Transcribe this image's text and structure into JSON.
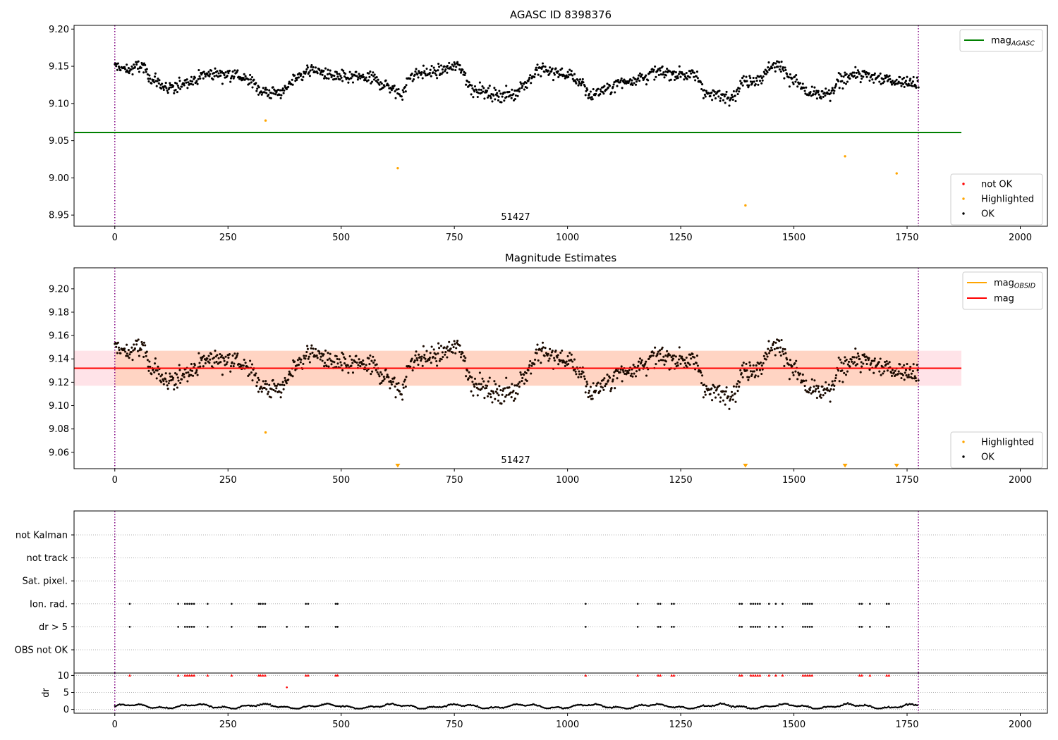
{
  "figure": {
    "panels": [
      {
        "id": "agasc",
        "title": "AGASC ID 8398376",
        "xlim": [
          -90,
          2060
        ],
        "ylim": [
          8.935,
          9.205
        ],
        "yticks": [
          "9.20",
          "9.15",
          "9.10",
          "9.05",
          "9.00",
          "8.95"
        ],
        "xticks": [
          "0",
          "250",
          "500",
          "750",
          "1000",
          "1250",
          "1500",
          "1750",
          "2000"
        ],
        "annotation": "51427",
        "legend_top": [
          {
            "label": "mag",
            "sub": "AGASC",
            "color": "#008000"
          }
        ],
        "legend_bottom": [
          {
            "label": "not OK",
            "color": "#ff0000"
          },
          {
            "label": "Highlighted",
            "color": "#ffa500"
          },
          {
            "label": "OK",
            "color": "#000000"
          }
        ]
      },
      {
        "id": "estimates",
        "title": "Magnitude Estimates",
        "xlim": [
          -90,
          2060
        ],
        "ylim": [
          9.046,
          9.218
        ],
        "yticks": [
          "9.20",
          "9.18",
          "9.16",
          "9.14",
          "9.12",
          "9.10",
          "9.08",
          "9.06"
        ],
        "xticks": [
          "0",
          "250",
          "500",
          "750",
          "1000",
          "1250",
          "1500",
          "1750",
          "2000"
        ],
        "annotation": "51427",
        "legend_top": [
          {
            "label": "mag",
            "sub": "OBSID",
            "color": "#ffa500"
          },
          {
            "label": "mag",
            "sub": "",
            "color": "#ff0000"
          }
        ],
        "legend_bottom": [
          {
            "label": "Highlighted",
            "color": "#ffa500"
          },
          {
            "label": "OK",
            "color": "#000000"
          }
        ]
      },
      {
        "id": "flags",
        "categories": [
          "not Kalman",
          "not track",
          "Sat. pixel.",
          "Ion. rad.",
          "dr > 5",
          "OBS not OK"
        ]
      },
      {
        "id": "dr",
        "ylabel": "dr",
        "yticks": [
          "10",
          "5",
          "0"
        ],
        "ylim": [
          -0.5,
          10.5
        ],
        "xticks": [
          "0",
          "250",
          "500",
          "750",
          "1000",
          "1250",
          "1500",
          "1750",
          "2000"
        ]
      }
    ]
  },
  "chart_data": [
    {
      "type": "scatter",
      "title": "AGASC ID 8398376",
      "xlim": [
        -90,
        2060
      ],
      "ylim": [
        8.935,
        9.205
      ],
      "series": [
        {
          "name": "mag_AGASC",
          "type": "hline",
          "y": 9.061,
          "x_range": [
            -90,
            1870
          ],
          "color": "#008000"
        },
        {
          "name": "Highlighted",
          "color": "#ffa500",
          "points": [
            [
              333,
              9.077
            ],
            [
              625,
              9.013
            ],
            [
              1393,
              8.963
            ],
            [
              1613,
              9.029
            ],
            [
              1727,
              9.006
            ]
          ]
        },
        {
          "name": "OK",
          "color": "#000000",
          "x_range": [
            0,
            1775
          ],
          "y_range": [
            9.09,
            9.17
          ]
        }
      ],
      "vlines": [
        0,
        1775
      ],
      "annotation": {
        "text": "51427",
        "x": 888
      }
    },
    {
      "type": "scatter",
      "title": "Magnitude Estimates",
      "xlim": [
        -90,
        2060
      ],
      "ylim": [
        9.046,
        9.218
      ],
      "series": [
        {
          "name": "mag_OBSID",
          "type": "band",
          "center": 9.132,
          "low": 9.117,
          "high": 9.147,
          "x_range": [
            0,
            1775
          ],
          "color": "#ffa500"
        },
        {
          "name": "mag",
          "type": "hline",
          "y": 9.132,
          "x_range": [
            -90,
            1870
          ],
          "color": "#ff0000"
        },
        {
          "name": "Highlighted",
          "color": "#ffa500",
          "points": [
            [
              333,
              9.077
            ]
          ],
          "out_of_range_below": [
            625,
            1393,
            1613,
            1727
          ]
        },
        {
          "name": "OK",
          "color": "#000000",
          "x_range": [
            0,
            1775
          ],
          "y_range": [
            9.09,
            9.17
          ]
        }
      ],
      "vlines": [
        0,
        1775
      ],
      "annotation": {
        "text": "51427",
        "x": 888
      }
    },
    {
      "type": "scatter",
      "categories": [
        "not Kalman",
        "not track",
        "Sat. pixel.",
        "Ion. rad.",
        "dr > 5",
        "OBS not OK"
      ],
      "flags": {
        "Ion. rad.": [
          33,
          140,
          155,
          160,
          165,
          170,
          175,
          205,
          258,
          318,
          322,
          327,
          332,
          422,
          427,
          488,
          492,
          1040,
          1155,
          1200,
          1205,
          1230,
          1235,
          1380,
          1385,
          1405,
          1410,
          1415,
          1420,
          1425,
          1445,
          1460,
          1475,
          1520,
          1525,
          1530,
          1535,
          1540,
          1645,
          1650,
          1668,
          1705,
          1710
        ],
        "dr > 5": [
          33,
          140,
          155,
          160,
          165,
          170,
          175,
          205,
          258,
          318,
          322,
          327,
          332,
          380,
          422,
          427,
          488,
          492,
          1040,
          1155,
          1200,
          1205,
          1230,
          1235,
          1380,
          1385,
          1405,
          1410,
          1415,
          1420,
          1425,
          1445,
          1460,
          1475,
          1520,
          1525,
          1530,
          1535,
          1540,
          1645,
          1650,
          1668,
          1705,
          1710
        ]
      }
    },
    {
      "type": "scatter",
      "ylabel": "dr",
      "ylim": [
        -0.5,
        10.5
      ],
      "series": [
        {
          "name": "dr > 5",
          "color": "#ff0000",
          "y": 10,
          "x": [
            33,
            140,
            155,
            160,
            165,
            170,
            175,
            205,
            258,
            318,
            322,
            327,
            332,
            422,
            427,
            488,
            492,
            1040,
            1155,
            1200,
            1205,
            1230,
            1235,
            1380,
            1385,
            1405,
            1410,
            1415,
            1420,
            1425,
            1445,
            1460,
            1475,
            1520,
            1525,
            1530,
            1535,
            1540,
            1645,
            1650,
            1668,
            1705,
            1710
          ],
          "extra": [
            [
              380,
              6.5
            ]
          ]
        },
        {
          "name": "dr",
          "color": "#000000",
          "x_range": [
            0,
            1775
          ],
          "y_range": [
            0.3,
            2.0
          ]
        }
      ]
    }
  ]
}
